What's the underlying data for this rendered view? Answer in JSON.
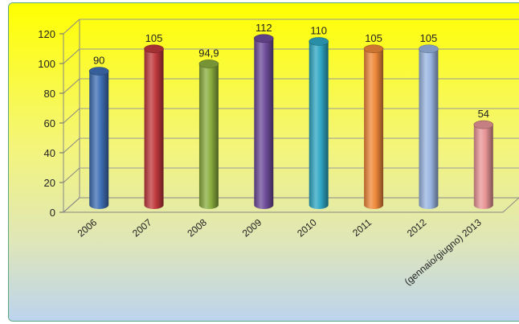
{
  "chart_data": {
    "type": "bar",
    "categories": [
      "2006",
      "2007",
      "2008",
      "2009",
      "2010",
      "2011",
      "2012",
      "(gennaio/giugno) 2013"
    ],
    "values": [
      90,
      105,
      94.9,
      112,
      110,
      105,
      105,
      54
    ],
    "data_labels": [
      "90",
      "105",
      "94,9",
      "112",
      "110",
      "105",
      "105",
      "54"
    ],
    "yticks": [
      "0",
      "20",
      "40",
      "60",
      "80",
      "100",
      "120"
    ],
    "ylim": [
      0,
      120
    ],
    "grid": true,
    "legend": "none",
    "colors": [
      "#3f6fb4",
      "#c0393d",
      "#8bae3f",
      "#6f4c9b",
      "#2fa7c4",
      "#f0883a",
      "#9ab5e2",
      "#e89597"
    ],
    "background_top": "#ffff00",
    "background_bottom": "#bcd4ee"
  }
}
